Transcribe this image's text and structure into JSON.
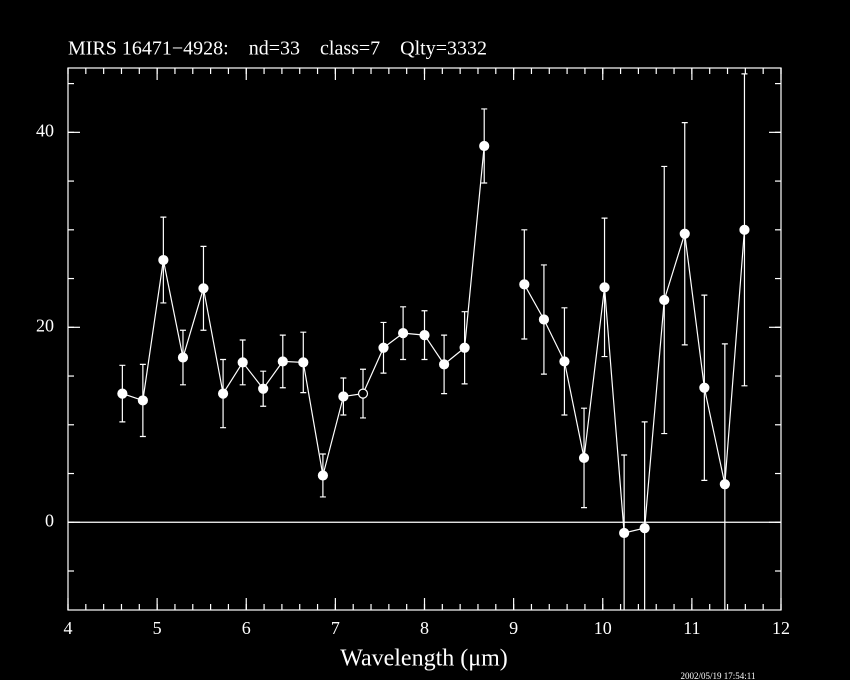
{
  "chart_data": {
    "type": "errorbar-line",
    "title": "MIRS 16471−4928:    nd=33    class=7    Qlty=3332",
    "xlabel": "Wavelength (μm)",
    "timestamp": "2002/05/19 17:54:11",
    "x": [
      4.61,
      4.84,
      5.07,
      5.29,
      5.52,
      5.74,
      5.96,
      6.19,
      6.41,
      6.64,
      6.86,
      7.09,
      7.31,
      7.54,
      7.76,
      8.0,
      8.22,
      8.45,
      8.67,
      8.89,
      9.12,
      9.34,
      9.57,
      9.79,
      10.02,
      10.24,
      10.47,
      10.69,
      10.92,
      11.14,
      11.37,
      11.59
    ],
    "series": [
      {
        "color": "#ffffff",
        "values": [
          13.2,
          12.5,
          26.9,
          16.9,
          24.0,
          13.2,
          16.4,
          13.7,
          16.5,
          16.4,
          4.8,
          12.9,
          13.2,
          17.9,
          19.4,
          19.2,
          16.2,
          17.9,
          38.6,
          null,
          24.4,
          20.8,
          16.5,
          6.6,
          24.1,
          -1.1,
          -0.6,
          22.8,
          29.6,
          13.8,
          3.9,
          30.0
        ],
        "errors": [
          2.9,
          3.7,
          4.4,
          2.8,
          4.3,
          3.5,
          2.3,
          1.8,
          2.7,
          3.1,
          2.2,
          1.9,
          2.5,
          2.6,
          2.7,
          2.5,
          3.0,
          3.7,
          3.8,
          null,
          5.6,
          5.6,
          5.5,
          5.1,
          7.1,
          8.0,
          10.9,
          13.7,
          11.4,
          9.5,
          14.4,
          16.0
        ],
        "open_markers": [
          12
        ]
      }
    ],
    "xlim": [
      4,
      12
    ],
    "ylim": [
      -9,
      46.6
    ],
    "xticks": [
      4,
      5,
      6,
      7,
      8,
      9,
      10,
      11,
      12
    ],
    "yticks": [
      0,
      20,
      40
    ],
    "xminor_step": 0.2,
    "yminor_step": 5,
    "hline": 0
  }
}
